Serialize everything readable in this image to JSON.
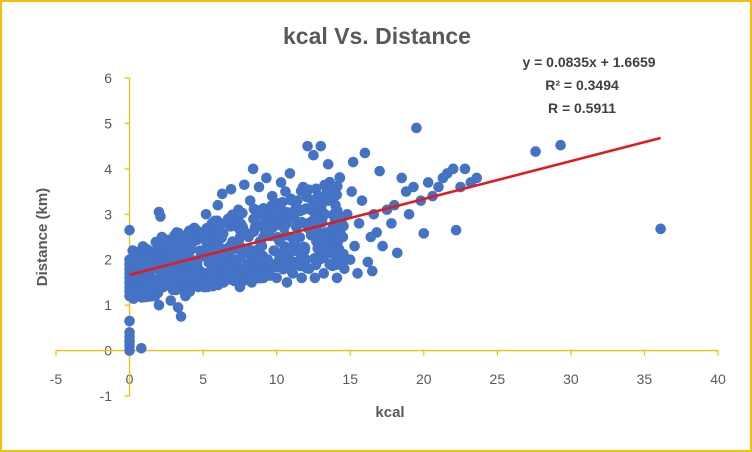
{
  "colors": {
    "frame": "#f2c20a",
    "axis": "#f2c20a",
    "points": "#4472c4",
    "trendline": "#e31a1c",
    "text": "#595959"
  },
  "chart_data": {
    "type": "scatter",
    "title": "kcal Vs. Distance",
    "xlabel": "kcal",
    "ylabel": "Distance (km)",
    "xlim": [
      -5,
      40
    ],
    "ylim": [
      -1,
      6
    ],
    "x_ticks": [
      "-5",
      "0",
      "5",
      "10",
      "15",
      "20",
      "25",
      "30",
      "35",
      "40"
    ],
    "y_ticks": [
      "-1",
      "0",
      "1",
      "2",
      "3",
      "4",
      "5",
      "6"
    ],
    "grid": false,
    "legend": "none",
    "annotations": {
      "equation": "y = 0.0835x + 1.6659",
      "r_squared": "R² = 0.3494",
      "r": "R = 0.5911"
    },
    "trendline": {
      "slope": 0.0835,
      "intercept": 1.6659,
      "x_range": [
        0,
        36.1
      ]
    },
    "points": [
      [
        0,
        0.0
      ],
      [
        0,
        0.1
      ],
      [
        0,
        0.2
      ],
      [
        0,
        0.3
      ],
      [
        0,
        0.4
      ],
      [
        0,
        0.65
      ],
      [
        0.8,
        0.05
      ],
      [
        0,
        1.2
      ],
      [
        0,
        1.3
      ],
      [
        0,
        1.4
      ],
      [
        0,
        1.5
      ],
      [
        0,
        1.6
      ],
      [
        0,
        1.7
      ],
      [
        0,
        1.8
      ],
      [
        0,
        1.9
      ],
      [
        0,
        2.0
      ],
      [
        0,
        2.65
      ],
      [
        0.3,
        1.4
      ],
      [
        0.4,
        1.7
      ],
      [
        0.5,
        1.9
      ],
      [
        0.6,
        1.6
      ],
      [
        0.7,
        2.1
      ],
      [
        0.9,
        1.5
      ],
      [
        1.0,
        1.8
      ],
      [
        1.1,
        2.2
      ],
      [
        1.2,
        1.3
      ],
      [
        1.3,
        1.6
      ],
      [
        1.5,
        2.0
      ],
      [
        1.6,
        1.2
      ],
      [
        1.7,
        1.5
      ],
      [
        1.8,
        2.2
      ],
      [
        1.9,
        1.8
      ],
      [
        2.0,
        3.05
      ],
      [
        2.0,
        1.0
      ],
      [
        2.1,
        2.95
      ],
      [
        2.2,
        2.5
      ],
      [
        2.3,
        1.4
      ],
      [
        2.4,
        1.9
      ],
      [
        2.5,
        2.3
      ],
      [
        2.7,
        1.6
      ],
      [
        2.8,
        1.1
      ],
      [
        3.0,
        2.0
      ],
      [
        3.1,
        1.5
      ],
      [
        3.2,
        2.6
      ],
      [
        3.3,
        0.95
      ],
      [
        3.4,
        1.8
      ],
      [
        3.5,
        0.75
      ],
      [
        3.6,
        2.2
      ],
      [
        3.8,
        1.2
      ],
      [
        3.9,
        1.7
      ],
      [
        4.0,
        2.4
      ],
      [
        4.1,
        1.3
      ],
      [
        4.2,
        2.0
      ],
      [
        4.4,
        2.7
      ],
      [
        4.5,
        1.5
      ],
      [
        4.6,
        1.9
      ],
      [
        4.8,
        2.2
      ],
      [
        5.0,
        2.5
      ],
      [
        5.1,
        1.7
      ],
      [
        5.2,
        3.0
      ],
      [
        5.3,
        1.4
      ],
      [
        5.5,
        2.1
      ],
      [
        5.6,
        2.8
      ],
      [
        5.8,
        1.6
      ],
      [
        5.9,
        2.3
      ],
      [
        6.0,
        3.2
      ],
      [
        6.1,
        1.9
      ],
      [
        6.2,
        2.6
      ],
      [
        6.3,
        3.45
      ],
      [
        6.4,
        1.5
      ],
      [
        6.6,
        2.2
      ],
      [
        6.7,
        2.9
      ],
      [
        6.8,
        1.8
      ],
      [
        6.9,
        3.55
      ],
      [
        7.0,
        2.4
      ],
      [
        7.1,
        1.6
      ],
      [
        7.2,
        2.0
      ],
      [
        7.4,
        3.1
      ],
      [
        7.5,
        1.4
      ],
      [
        7.6,
        2.7
      ],
      [
        7.7,
        2.2
      ],
      [
        7.8,
        3.65
      ],
      [
        8.0,
        1.9
      ],
      [
        8.1,
        2.5
      ],
      [
        8.2,
        3.3
      ],
      [
        8.3,
        1.5
      ],
      [
        8.4,
        4.0
      ],
      [
        8.5,
        2.1
      ],
      [
        8.6,
        2.8
      ],
      [
        8.7,
        1.7
      ],
      [
        8.8,
        3.6
      ],
      [
        9.0,
        2.3
      ],
      [
        9.1,
        1.6
      ],
      [
        9.2,
        3.0
      ],
      [
        9.3,
        3.8
      ],
      [
        9.4,
        2.0
      ],
      [
        9.5,
        2.6
      ],
      [
        9.6,
        1.8
      ],
      [
        9.7,
        3.4
      ],
      [
        9.8,
        2.2
      ],
      [
        9.9,
        2.9
      ],
      [
        10.0,
        1.6
      ],
      [
        10.1,
        3.2
      ],
      [
        10.2,
        2.4
      ],
      [
        10.3,
        3.7
      ],
      [
        10.4,
        1.9
      ],
      [
        10.5,
        2.7
      ],
      [
        10.6,
        3.5
      ],
      [
        10.7,
        1.5
      ],
      [
        10.8,
        2.1
      ],
      [
        10.9,
        3.9
      ],
      [
        11.0,
        2.5
      ],
      [
        11.1,
        1.7
      ],
      [
        11.2,
        3.0
      ],
      [
        11.3,
        2.3
      ],
      [
        11.4,
        3.3
      ],
      [
        11.5,
        1.9
      ],
      [
        11.6,
        2.8
      ],
      [
        11.7,
        1.6
      ],
      [
        11.8,
        3.6
      ],
      [
        11.9,
        2.2
      ],
      [
        12.0,
        2.0
      ],
      [
        12.1,
        4.5
      ],
      [
        12.2,
        1.8
      ],
      [
        12.3,
        3.1
      ],
      [
        12.4,
        2.6
      ],
      [
        12.5,
        4.3
      ],
      [
        12.6,
        1.6
      ],
      [
        12.7,
        2.4
      ],
      [
        12.8,
        3.4
      ],
      [
        12.9,
        2.0
      ],
      [
        13.0,
        4.5
      ],
      [
        13.1,
        2.9
      ],
      [
        13.2,
        1.7
      ],
      [
        13.3,
        2.3
      ],
      [
        13.4,
        3.6
      ],
      [
        13.5,
        4.1
      ],
      [
        13.6,
        1.9
      ],
      [
        13.8,
        2.7
      ],
      [
        14.0,
        3.2
      ],
      [
        14.1,
        1.6
      ],
      [
        14.2,
        2.2
      ],
      [
        14.3,
        3.8
      ],
      [
        14.5,
        2.5
      ],
      [
        14.6,
        1.8
      ],
      [
        14.8,
        3.0
      ],
      [
        15.0,
        2.0
      ],
      [
        15.1,
        3.5
      ],
      [
        15.2,
        4.15
      ],
      [
        15.3,
        2.3
      ],
      [
        15.5,
        1.7
      ],
      [
        15.6,
        2.8
      ],
      [
        15.8,
        3.3
      ],
      [
        16.0,
        4.35
      ],
      [
        16.2,
        1.95
      ],
      [
        16.4,
        2.5
      ],
      [
        16.5,
        1.75
      ],
      [
        16.6,
        3.0
      ],
      [
        16.8,
        2.6
      ],
      [
        17.0,
        3.95
      ],
      [
        17.2,
        2.3
      ],
      [
        17.5,
        3.1
      ],
      [
        17.8,
        2.8
      ],
      [
        18.0,
        3.2
      ],
      [
        18.2,
        2.15
      ],
      [
        18.5,
        3.8
      ],
      [
        18.8,
        3.5
      ],
      [
        19.0,
        3.0
      ],
      [
        19.3,
        3.6
      ],
      [
        19.5,
        4.9
      ],
      [
        19.8,
        3.3
      ],
      [
        20.0,
        2.58
      ],
      [
        20.3,
        3.7
      ],
      [
        20.6,
        3.4
      ],
      [
        21.0,
        3.6
      ],
      [
        21.3,
        3.8
      ],
      [
        21.6,
        3.9
      ],
      [
        22.0,
        4.0
      ],
      [
        22.2,
        2.65
      ],
      [
        22.5,
        3.6
      ],
      [
        22.8,
        4.0
      ],
      [
        23.2,
        3.7
      ],
      [
        23.6,
        3.8
      ],
      [
        27.6,
        4.38
      ],
      [
        29.3,
        4.52
      ],
      [
        36.1,
        2.68
      ]
    ]
  }
}
